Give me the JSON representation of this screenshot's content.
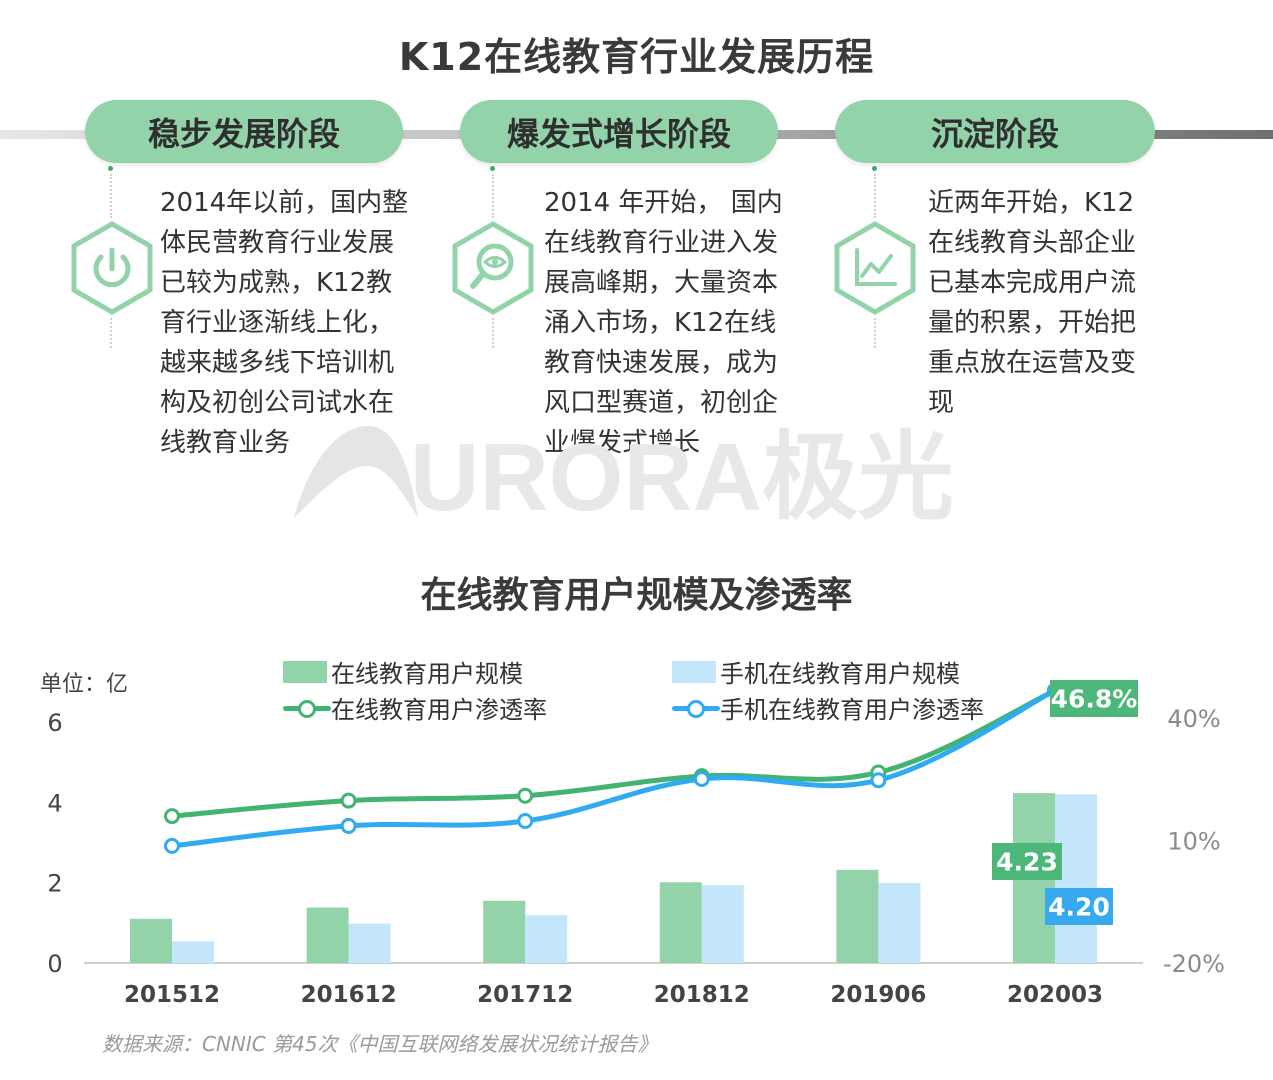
{
  "page": {
    "title": "K12在线教育行业发展历程",
    "chart_title": "在线教育用户规模及渗透率",
    "unit": "单位：亿",
    "source": "数据来源：CNNIC 第45次《中国互联网络发展状况统计报告》",
    "watermark": "URORA极光"
  },
  "stages": [
    {
      "label": "稳步发展阶段",
      "icon": "power-icon",
      "text": "2014年以前，国内整\n体民营教育行业发展\n已较为成熟，K12教\n育行业逐渐线上化，\n越来越多线下培训机\n构及初创公司试水在\n线教育业务"
    },
    {
      "label": "爆发式增长阶段",
      "icon": "magnifier-eye-icon",
      "text": "2014 年开始， 国内\n在线教育行业进入发\n展高峰期，大量资本\n涌入市场，K12在线\n教育快速发展，成为\n风口型赛道，初创企\n业爆发式增长"
    },
    {
      "label": "沉淀阶段",
      "icon": "trend-chart-icon",
      "text": "近两年开始，K12\n在线教育头部企业\n已基本完成用户流\n量的积累，开始把\n重点放在运营及变\n现"
    }
  ],
  "colors": {
    "green_bar": "#93d3a9",
    "blue_bar": "#c4e6fb",
    "green_line": "#43b372",
    "blue_line": "#30aaf0",
    "green_label": "#4cb778",
    "blue_label": "#37a9ee",
    "pill": "#93d3a9"
  },
  "chart_data": {
    "type": "bar",
    "categories": [
      "201512",
      "201612",
      "201712",
      "201812",
      "201906",
      "202003"
    ],
    "left_axis": {
      "ticks": [
        "0",
        "2",
        "4",
        "6"
      ],
      "ylim": [
        0,
        6
      ]
    },
    "right_axis": {
      "ticks": [
        "-20%",
        "10%",
        "40%"
      ],
      "ylim": [
        -20,
        55
      ]
    },
    "series": [
      {
        "name": "在线教育用户规模",
        "kind": "bar",
        "axis": "left",
        "values": [
          1.1,
          1.38,
          1.55,
          2.01,
          2.32,
          4.23
        ]
      },
      {
        "name": "手机在线教育用户规模",
        "kind": "bar",
        "axis": "left",
        "values": [
          0.54,
          0.98,
          1.19,
          1.94,
          1.99,
          4.2
        ]
      },
      {
        "name": "在线教育用户渗透率",
        "kind": "line",
        "axis": "right",
        "values": [
          16.0,
          19.8,
          21.0,
          25.8,
          26.7,
          46.8
        ]
      },
      {
        "name": "手机在线教育用户渗透率",
        "kind": "line",
        "axis": "right",
        "values": [
          8.7,
          13.6,
          14.8,
          25.1,
          24.8,
          46.8
        ]
      }
    ],
    "data_labels": {
      "green_bar_last": "4.23",
      "blue_bar_last": "4.20",
      "line_last": "46.8%"
    },
    "legend_position": "top",
    "grid": false
  }
}
